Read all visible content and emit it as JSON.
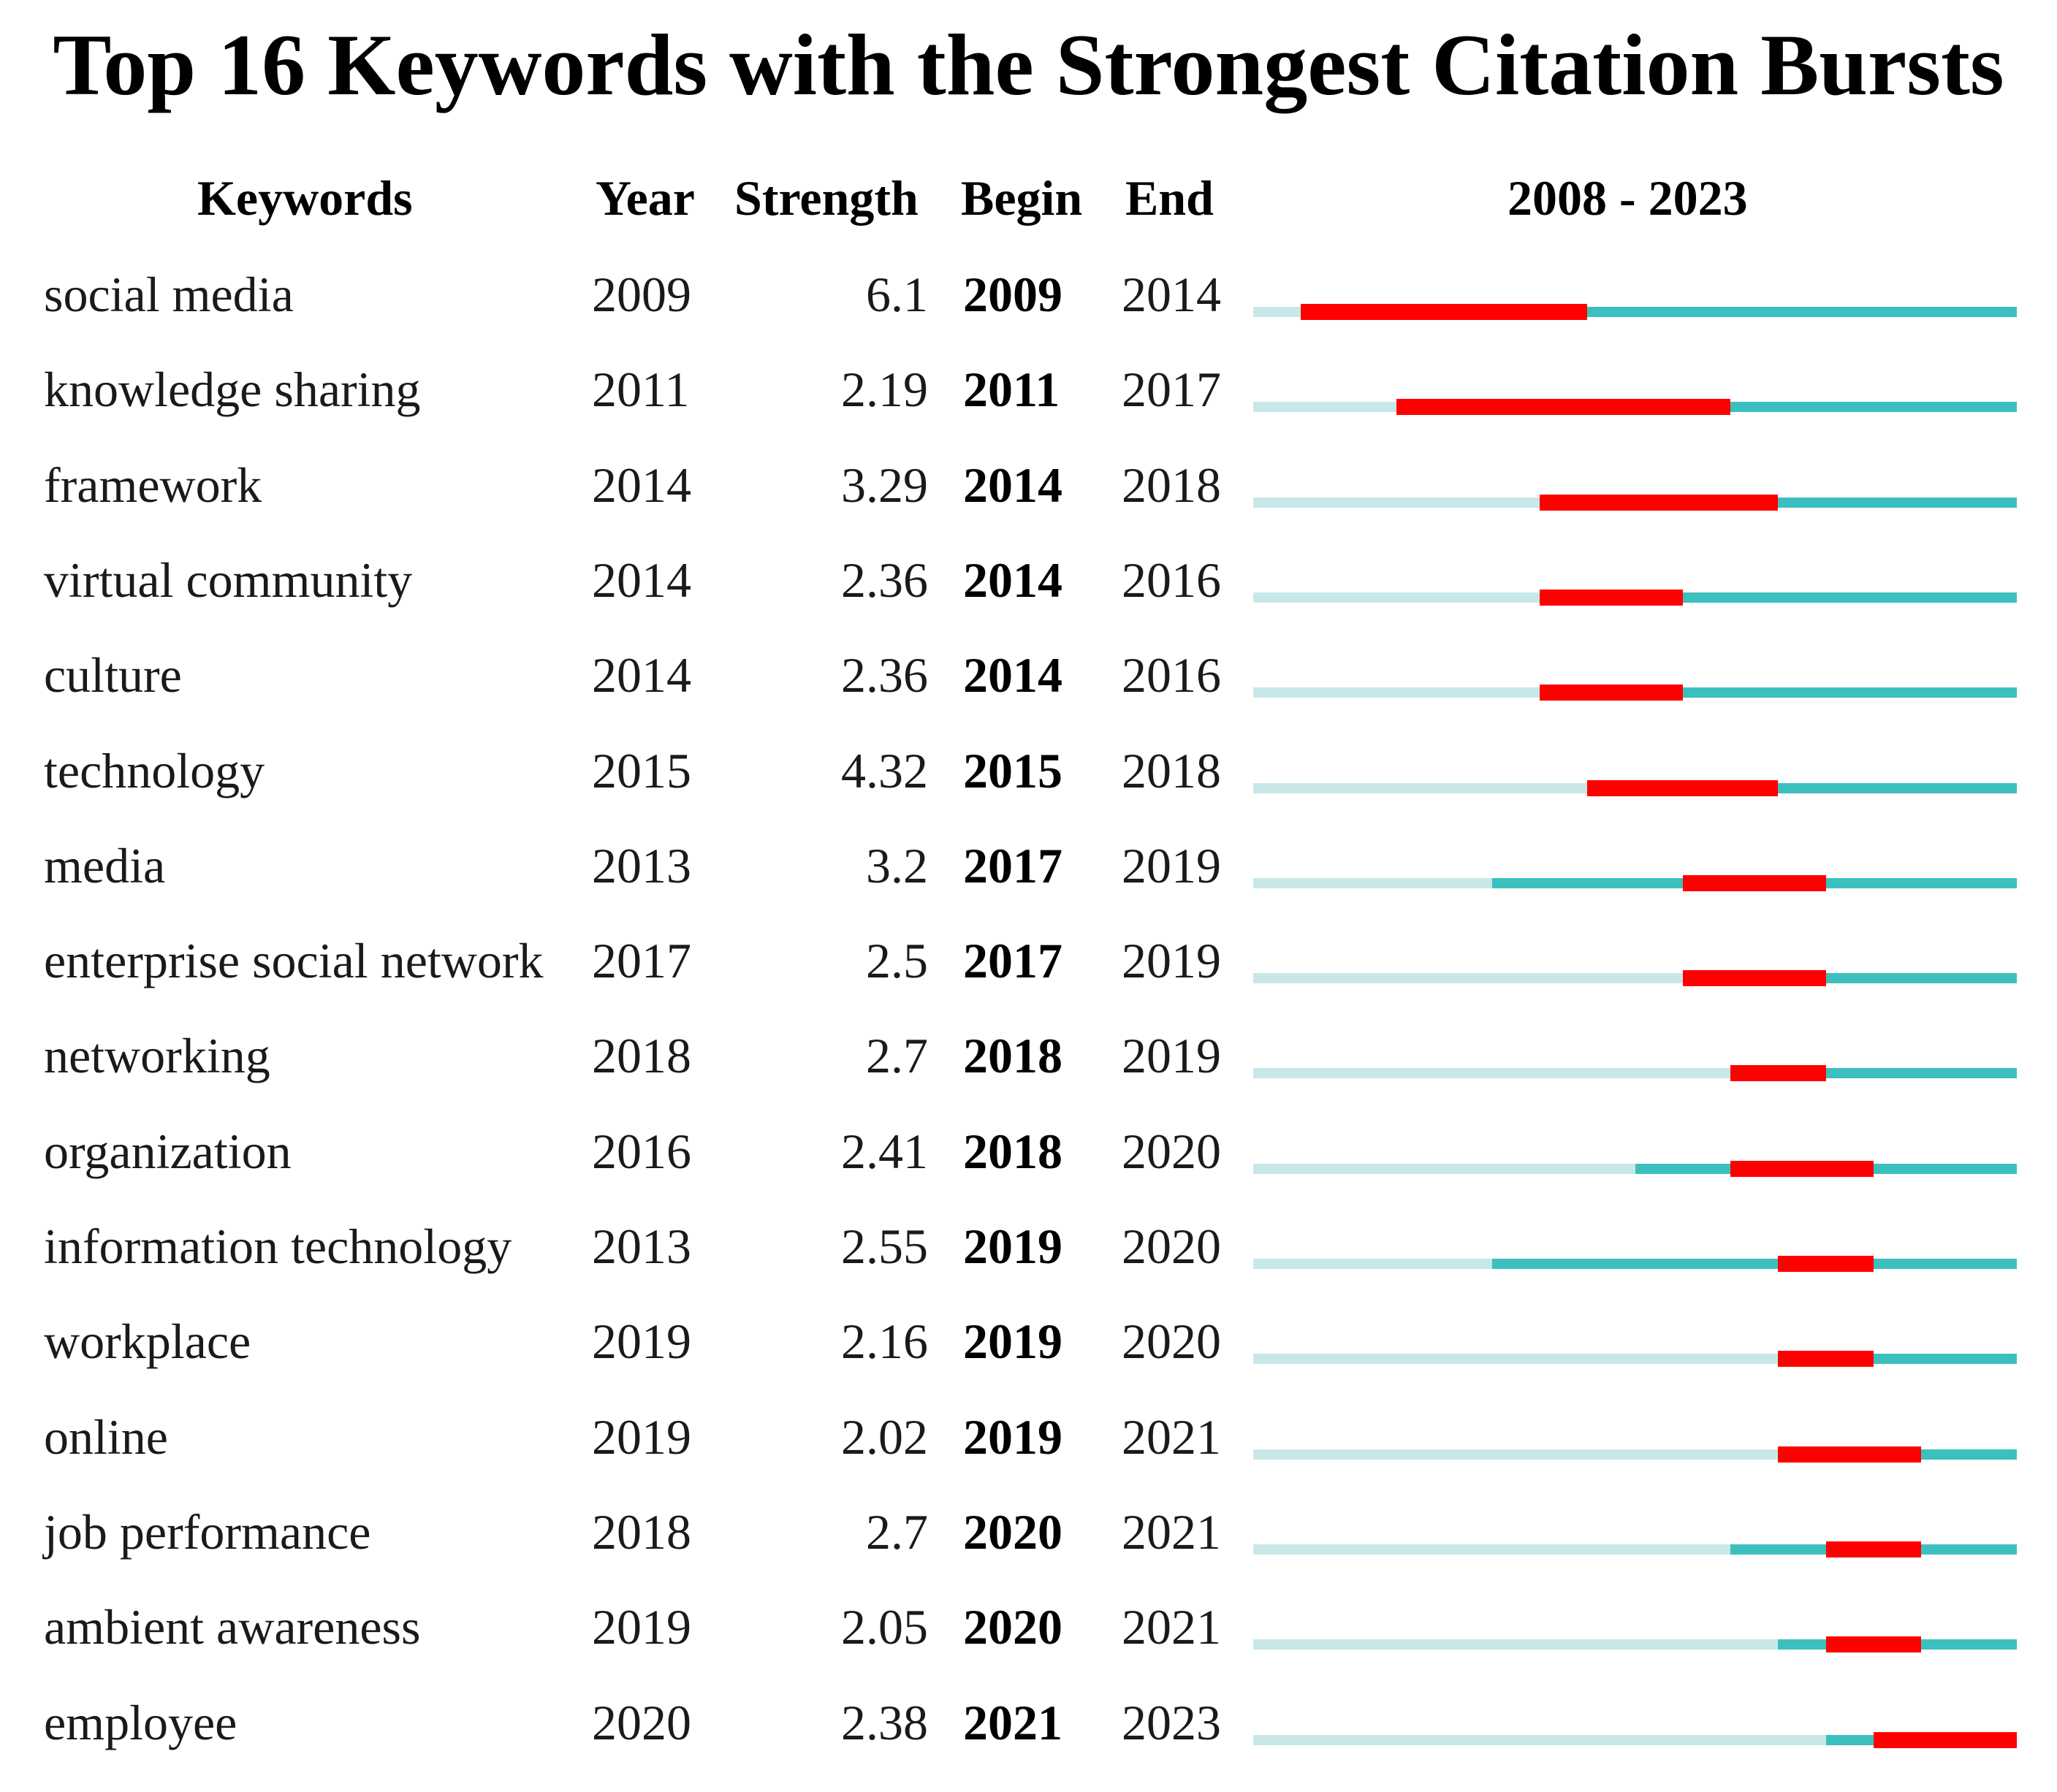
{
  "title": "Top 16 Keywords with the Strongest Citation Bursts",
  "headers": {
    "keywords": "Keywords",
    "year": "Year",
    "strength": "Strength",
    "begin": "Begin",
    "end": "End",
    "range": "2008 - 2023"
  },
  "colors": {
    "burst": "#ff0000",
    "active": "#3cbfbf",
    "inactive": "#c8e8e8"
  },
  "chart_data": {
    "type": "table",
    "timeline_start": 2008,
    "timeline_end": 2023,
    "rows": [
      {
        "keyword": "social media",
        "year": "2009",
        "strength": "6.1",
        "begin": "2009",
        "end": "2014"
      },
      {
        "keyword": "knowledge sharing",
        "year": "2011",
        "strength": "2.19",
        "begin": "2011",
        "end": "2017"
      },
      {
        "keyword": "framework",
        "year": "2014",
        "strength": "3.29",
        "begin": "2014",
        "end": "2018"
      },
      {
        "keyword": "virtual community",
        "year": "2014",
        "strength": "2.36",
        "begin": "2014",
        "end": "2016"
      },
      {
        "keyword": "culture",
        "year": "2014",
        "strength": "2.36",
        "begin": "2014",
        "end": "2016"
      },
      {
        "keyword": "technology",
        "year": "2015",
        "strength": "4.32",
        "begin": "2015",
        "end": "2018"
      },
      {
        "keyword": "media",
        "year": "2013",
        "strength": "3.2",
        "begin": "2017",
        "end": "2019"
      },
      {
        "keyword": "enterprise social network",
        "year": "2017",
        "strength": "2.5",
        "begin": "2017",
        "end": "2019"
      },
      {
        "keyword": "networking",
        "year": "2018",
        "strength": "2.7",
        "begin": "2018",
        "end": "2019"
      },
      {
        "keyword": "organization",
        "year": "2016",
        "strength": "2.41",
        "begin": "2018",
        "end": "2020"
      },
      {
        "keyword": "information technology",
        "year": "2013",
        "strength": "2.55",
        "begin": "2019",
        "end": "2020"
      },
      {
        "keyword": "workplace",
        "year": "2019",
        "strength": "2.16",
        "begin": "2019",
        "end": "2020"
      },
      {
        "keyword": "online",
        "year": "2019",
        "strength": "2.02",
        "begin": "2019",
        "end": "2021"
      },
      {
        "keyword": "job performance",
        "year": "2018",
        "strength": "2.7",
        "begin": "2020",
        "end": "2021"
      },
      {
        "keyword": "ambient awareness",
        "year": "2019",
        "strength": "2.05",
        "begin": "2020",
        "end": "2021"
      },
      {
        "keyword": "employee",
        "year": "2020",
        "strength": "2.38",
        "begin": "2021",
        "end": "2023"
      }
    ]
  }
}
